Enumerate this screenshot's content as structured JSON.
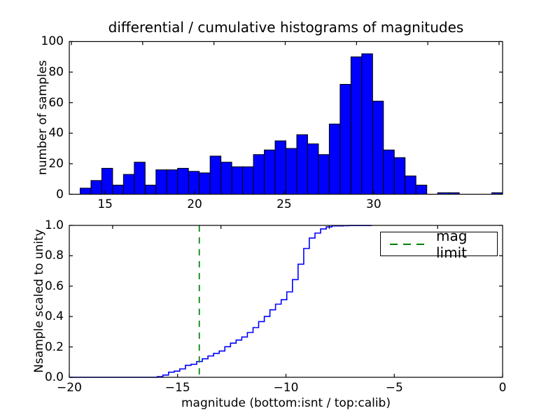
{
  "figure": {
    "title": "differential / cumulative histograms of magnitudes",
    "background": "#ffffff"
  },
  "top_plot": {
    "ylabel": "number of samples",
    "ytick_labels": [
      "0",
      "20",
      "40",
      "60",
      "80",
      "100"
    ],
    "xtick_labels": [
      "15",
      "20",
      "25",
      "30"
    ]
  },
  "bottom_plot": {
    "ylabel": "Nsample scaled to unity",
    "xlabel": "magnitude (bottom:isnt / top:calib)",
    "ytick_labels": [
      "0.0",
      "0.2",
      "0.4",
      "0.6",
      "0.8",
      "1.0"
    ],
    "xtick_labels": [
      "−20",
      "−15",
      "−10",
      "−5",
      "0"
    ],
    "legend": {
      "items": [
        {
          "label": "mag limit",
          "line_style": "dashed",
          "color": "#008000"
        }
      ]
    }
  },
  "colors": {
    "bar_fill": "#0000ff",
    "bar_edge": "#000000",
    "curve": "#0000ff",
    "mag_limit_line": "#008000",
    "axis": "#000000",
    "text": "#000000"
  },
  "chart_data": [
    {
      "type": "bar",
      "role": "differential histogram of magnitudes (top panel)",
      "x_axis": "calib magnitude",
      "bin_start": 13.0,
      "bin_width": 0.605,
      "counts": [
        0,
        4,
        9,
        17,
        6,
        13,
        21,
        6,
        16,
        16,
        17,
        15,
        14,
        25,
        21,
        18,
        18,
        26,
        29,
        35,
        30,
        39,
        33,
        26,
        46,
        72,
        90,
        92,
        61,
        29,
        24,
        12,
        6,
        0,
        1,
        1,
        0,
        0,
        0,
        1
      ],
      "xlim": [
        13.0,
        37.2
      ],
      "ylim": [
        0,
        100
      ],
      "xticks": [
        15,
        20,
        25,
        30
      ],
      "yticks": [
        0,
        20,
        40,
        60,
        80,
        100
      ]
    },
    {
      "type": "line",
      "role": "cumulative histogram scaled to unity (bottom panel), step curve built from the same counts as the top panel",
      "x_axis": "isnt magnitude",
      "bin_start": -16.46,
      "bin_width": 0.26,
      "xlim": [
        -20,
        0
      ],
      "ylim": [
        0.0,
        1.0
      ],
      "xticks": [
        -20,
        -15,
        -10,
        -5,
        0
      ],
      "yticks": [
        0.0,
        0.2,
        0.4,
        0.6,
        0.8,
        1.0
      ],
      "mag_limit_x": -14,
      "legend": [
        "mag limit"
      ]
    }
  ]
}
